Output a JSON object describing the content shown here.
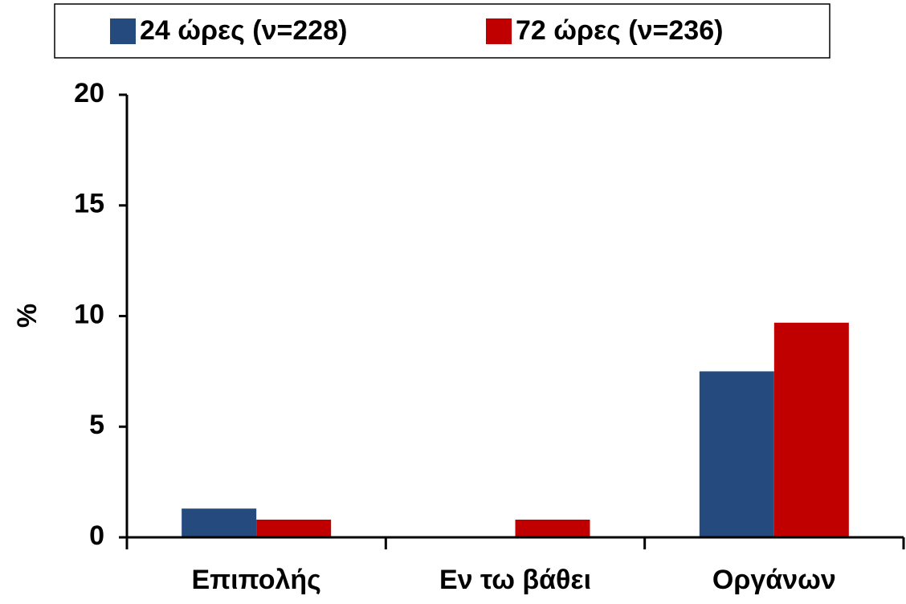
{
  "chart_data": {
    "type": "bar",
    "y_label": "%",
    "categories": [
      "Επιπολής",
      "Εν τω βάθει",
      "Οργάνων"
    ],
    "series": [
      {
        "name": "24 ώρες (ν=228)",
        "color": "#254b7e",
        "values": [
          1.3,
          0,
          7.5
        ]
      },
      {
        "name": "72 ώρες (ν=236)",
        "color": "#c00000",
        "values": [
          0.8,
          0.8,
          9.7
        ]
      }
    ],
    "ylim": [
      0,
      20
    ],
    "yticks": [
      0,
      5,
      10,
      15,
      20
    ],
    "legend": "top"
  }
}
